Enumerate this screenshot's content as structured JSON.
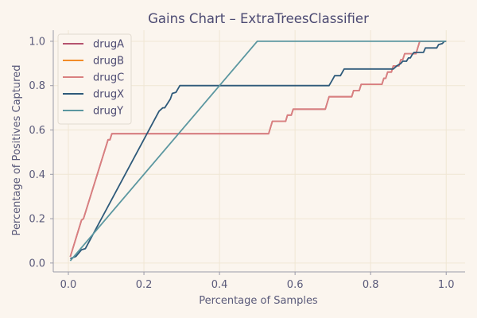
{
  "colors": {
    "background": "#fbf5ee",
    "axis": "#9a9aa8",
    "grid": "#f0e6d4",
    "text": "#5a5a7a",
    "title": "#4c4a72"
  },
  "chart_data": {
    "type": "line",
    "title": "Gains Chart – ExtraTreesClassifier",
    "xlabel": "Percentage of Samples",
    "ylabel": "Percentage of Positives Captured",
    "xlim": [
      -0.04,
      1.05
    ],
    "ylim": [
      -0.04,
      1.05
    ],
    "xticks": [
      0.0,
      0.2,
      0.4,
      0.6,
      0.8,
      1.0
    ],
    "yticks": [
      0.0,
      0.2,
      0.4,
      0.6,
      0.8,
      1.0
    ],
    "xtick_labels": [
      "0.0",
      "0.2",
      "0.4",
      "0.6",
      "0.8",
      "1.0"
    ],
    "ytick_labels": [
      "0.0",
      "0.2",
      "0.4",
      "0.6",
      "0.8",
      "1.0"
    ],
    "grid": true,
    "legend_position": "top-left",
    "series": [
      {
        "name": "drugA",
        "color": "#b5536f",
        "points": [
          [
            0.005,
            0.028
          ],
          [
            0.035,
            0.194
          ],
          [
            0.04,
            0.2
          ],
          [
            0.105,
            0.556
          ],
          [
            0.11,
            0.556
          ],
          [
            0.115,
            0.583
          ],
          [
            0.3,
            0.583
          ],
          [
            0.53,
            0.583
          ],
          [
            0.54,
            0.639
          ],
          [
            0.575,
            0.639
          ],
          [
            0.58,
            0.667
          ],
          [
            0.59,
            0.667
          ],
          [
            0.595,
            0.694
          ],
          [
            0.68,
            0.694
          ],
          [
            0.69,
            0.75
          ],
          [
            0.75,
            0.75
          ],
          [
            0.755,
            0.778
          ],
          [
            0.77,
            0.778
          ],
          [
            0.775,
            0.806
          ],
          [
            0.83,
            0.806
          ],
          [
            0.835,
            0.833
          ],
          [
            0.84,
            0.833
          ],
          [
            0.845,
            0.861
          ],
          [
            0.855,
            0.861
          ],
          [
            0.86,
            0.889
          ],
          [
            0.875,
            0.889
          ],
          [
            0.88,
            0.917
          ],
          [
            0.885,
            0.917
          ],
          [
            0.89,
            0.944
          ],
          [
            0.92,
            0.944
          ],
          [
            0.93,
            1.0
          ],
          [
            1.0,
            1.0
          ]
        ]
      },
      {
        "name": "drugB",
        "color": "#f28c28",
        "points": []
      },
      {
        "name": "drugC",
        "color": "#d98080",
        "points": [
          [
            0.005,
            0.028
          ],
          [
            0.035,
            0.194
          ],
          [
            0.04,
            0.2
          ],
          [
            0.105,
            0.556
          ],
          [
            0.11,
            0.556
          ],
          [
            0.115,
            0.583
          ],
          [
            0.3,
            0.583
          ],
          [
            0.53,
            0.583
          ],
          [
            0.54,
            0.639
          ],
          [
            0.575,
            0.639
          ],
          [
            0.58,
            0.667
          ],
          [
            0.59,
            0.667
          ],
          [
            0.595,
            0.694
          ],
          [
            0.68,
            0.694
          ],
          [
            0.69,
            0.75
          ],
          [
            0.75,
            0.75
          ],
          [
            0.755,
            0.778
          ],
          [
            0.77,
            0.778
          ],
          [
            0.775,
            0.806
          ],
          [
            0.83,
            0.806
          ],
          [
            0.835,
            0.833
          ],
          [
            0.84,
            0.833
          ],
          [
            0.845,
            0.861
          ],
          [
            0.855,
            0.861
          ],
          [
            0.86,
            0.889
          ],
          [
            0.875,
            0.889
          ],
          [
            0.88,
            0.917
          ],
          [
            0.885,
            0.917
          ],
          [
            0.89,
            0.944
          ],
          [
            0.92,
            0.944
          ],
          [
            0.93,
            1.0
          ],
          [
            1.0,
            1.0
          ]
        ]
      },
      {
        "name": "drugX",
        "color": "#2e5a7a",
        "points": [
          [
            0.005,
            0.02
          ],
          [
            0.02,
            0.03
          ],
          [
            0.035,
            0.06
          ],
          [
            0.045,
            0.065
          ],
          [
            0.24,
            0.685
          ],
          [
            0.25,
            0.7
          ],
          [
            0.255,
            0.7
          ],
          [
            0.27,
            0.74
          ],
          [
            0.275,
            0.765
          ],
          [
            0.285,
            0.77
          ],
          [
            0.295,
            0.8
          ],
          [
            0.69,
            0.8
          ],
          [
            0.7,
            0.83
          ],
          [
            0.705,
            0.845
          ],
          [
            0.72,
            0.845
          ],
          [
            0.73,
            0.875
          ],
          [
            0.86,
            0.875
          ],
          [
            0.87,
            0.89
          ],
          [
            0.88,
            0.9
          ],
          [
            0.885,
            0.91
          ],
          [
            0.895,
            0.91
          ],
          [
            0.9,
            0.925
          ],
          [
            0.905,
            0.925
          ],
          [
            0.91,
            0.94
          ],
          [
            0.915,
            0.95
          ],
          [
            0.94,
            0.95
          ],
          [
            0.945,
            0.97
          ],
          [
            0.975,
            0.97
          ],
          [
            0.98,
            0.985
          ],
          [
            0.99,
            0.99
          ],
          [
            0.995,
            1.0
          ],
          [
            1.0,
            1.0
          ]
        ]
      },
      {
        "name": "drugY",
        "color": "#5b97a0",
        "points": [
          [
            0.005,
            0.01
          ],
          [
            0.5,
            1.0
          ],
          [
            1.0,
            1.0
          ]
        ]
      }
    ]
  }
}
